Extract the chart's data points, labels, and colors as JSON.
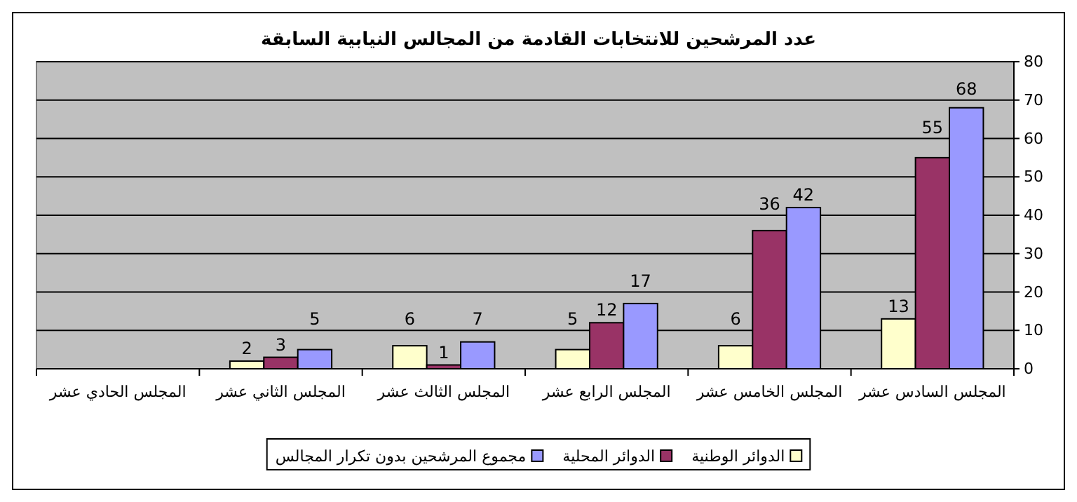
{
  "chart_data": {
    "type": "bar",
    "title": "عدد المرشحين للانتخابات القادمة من المجالس النيابية السابقة",
    "categories": [
      "المجلس الحادي عشر",
      "المجلس الثاني عشر",
      "المجلس الثالث عشر",
      "المجلس الرابع عشر",
      "المجلس الخامس عشر",
      "المجلس السادس عشر"
    ],
    "series": [
      {
        "name": "الدوائر الوطنية",
        "color": "#ffffcc",
        "values": [
          null,
          2,
          6,
          5,
          6,
          13
        ]
      },
      {
        "name": "الدوائر المحلية",
        "color": "#993366",
        "values": [
          null,
          3,
          1,
          12,
          36,
          55
        ]
      },
      {
        "name": "مجموع المرشحين بدون تكرار المجالس",
        "color": "#9999ff",
        "values": [
          null,
          5,
          7,
          17,
          42,
          68
        ]
      }
    ],
    "ylim": [
      0,
      80
    ],
    "yticks": [
      0,
      10,
      20,
      30,
      40,
      50,
      60,
      70,
      80
    ],
    "grid": "y",
    "legend": "bottom",
    "data_labels": true
  }
}
